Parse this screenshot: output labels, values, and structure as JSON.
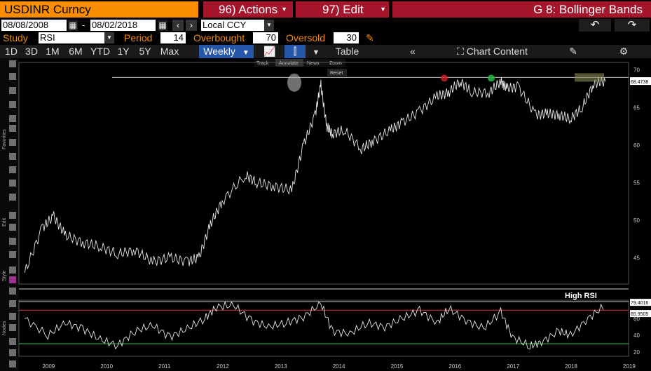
{
  "header": {
    "security": "USDINR Curncy",
    "actions_menu": "96) Actions",
    "edit_menu": "97) Edit",
    "page_title": "G 8: Bollinger Bands"
  },
  "range": {
    "start_date": "08/08/2008",
    "separator": "-",
    "end_date": "08/02/2018",
    "currency": "Local CCY"
  },
  "study": {
    "study_label": "Study",
    "study_value": "RSI",
    "period_label": "Period",
    "period_value": "14",
    "overbought_label": "Overbought",
    "overbought_value": "70",
    "oversold_label": "Oversold",
    "oversold_value": "30"
  },
  "toolbar": {
    "periods": [
      "1D",
      "3D",
      "1M",
      "6M",
      "YTD",
      "1Y",
      "5Y",
      "Max"
    ],
    "frequency": "Weekly",
    "table_label": "Table",
    "chart_content_label": "Chart Content"
  },
  "chart_toolbar": {
    "track": "Track",
    "annotate": "Annotate",
    "news": "News",
    "zoom": "Zoom",
    "reset": "Reset"
  },
  "side_labels": {
    "favorites": "Favorites",
    "edit": "Edit",
    "style": "Style",
    "nodes": "Nodes"
  },
  "rsi_panel": {
    "title": "High RSI"
  },
  "colors": {
    "orange": "#fa8c00",
    "red": "#a5152b",
    "selected_blue": "#2656a8",
    "overbought_line": "#c0303a",
    "oversold_line": "#2fa040"
  },
  "chart_data": [
    {
      "type": "line",
      "title": "",
      "series": [
        {
          "name": "USDINR",
          "x": [
            2008.6,
            2008.9,
            2009.1,
            2009.3,
            2009.6,
            2009.9,
            2010.2,
            2010.5,
            2010.8,
            2011.1,
            2011.4,
            2011.6,
            2011.8,
            2012.0,
            2012.4,
            2012.6,
            2012.9,
            2013.2,
            2013.4,
            2013.6,
            2013.7,
            2013.8,
            2013.9,
            2014.1,
            2014.4,
            2014.6,
            2014.9,
            2015.1,
            2015.4,
            2015.7,
            2015.9,
            2016.1,
            2016.3,
            2016.6,
            2016.8,
            2016.9,
            2017.1,
            2017.4,
            2017.6,
            2017.8,
            2018.0,
            2018.2,
            2018.4,
            2018.6
          ],
          "values": [
            43.0,
            49.0,
            50.5,
            48.0,
            47.0,
            46.5,
            45.5,
            46.0,
            44.5,
            45.0,
            44.5,
            45.0,
            49.5,
            52.5,
            56.0,
            55.0,
            54.5,
            54.0,
            60.0,
            64.0,
            68.0,
            62.5,
            61.5,
            62.0,
            59.5,
            60.5,
            62.0,
            63.0,
            64.5,
            66.5,
            67.0,
            68.5,
            67.0,
            67.0,
            68.5,
            67.5,
            67.8,
            64.0,
            64.2,
            64.0,
            63.5,
            65.0,
            68.2,
            68.47
          ]
        }
      ],
      "yticks": [
        45,
        50,
        55,
        60,
        65,
        70
      ],
      "ylim": [
        41.5,
        71
      ],
      "last_value_label": "68.4738",
      "xticks": [
        "2009",
        "2010",
        "2011",
        "2012",
        "2013",
        "2014",
        "2015",
        "2016",
        "2017",
        "2018",
        "2019"
      ]
    },
    {
      "type": "line",
      "title": "High RSI",
      "series": [
        {
          "name": "RSI",
          "x": [
            2008.6,
            2009.0,
            2009.3,
            2009.6,
            2009.9,
            2010.2,
            2010.5,
            2010.8,
            2011.1,
            2011.4,
            2011.7,
            2011.9,
            2012.2,
            2012.5,
            2012.8,
            2013.1,
            2013.4,
            2013.7,
            2013.9,
            2014.2,
            2014.5,
            2014.8,
            2015.1,
            2015.4,
            2015.7,
            2015.9,
            2016.2,
            2016.5,
            2016.8,
            2017.0,
            2017.3,
            2017.5,
            2017.8,
            2018.0,
            2018.3,
            2018.6
          ],
          "values": [
            60,
            40,
            55,
            48,
            35,
            28,
            45,
            52,
            38,
            48,
            60,
            74,
            76,
            58,
            50,
            55,
            62,
            78,
            45,
            42,
            55,
            50,
            60,
            70,
            55,
            72,
            58,
            48,
            68,
            38,
            27,
            32,
            45,
            40,
            60,
            76
          ]
        }
      ],
      "yticks": [
        20,
        40,
        60
      ],
      "overbought": 70,
      "oversold": 30,
      "value_labels": [
        "79.4016",
        "65.9505"
      ]
    }
  ]
}
